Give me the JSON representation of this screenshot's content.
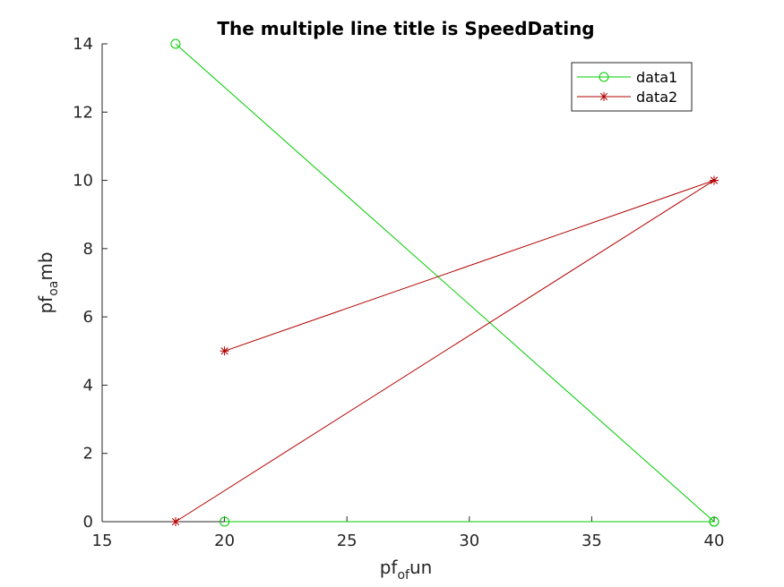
{
  "chart_data": {
    "type": "line",
    "title": "The multiple line title is SpeedDating",
    "xlabel": {
      "main": "pf",
      "sub": "of",
      "suffix": "un"
    },
    "ylabel": {
      "main": "pf",
      "sub": "oa",
      "suffix": "mb"
    },
    "xlim": [
      15,
      40
    ],
    "ylim": [
      0,
      14
    ],
    "xticks": [
      15,
      20,
      25,
      30,
      35,
      40
    ],
    "yticks": [
      0,
      2,
      4,
      6,
      8,
      10,
      12,
      14
    ],
    "xtick_labels": [
      "15",
      "20",
      "25",
      "30",
      "35",
      "40"
    ],
    "ytick_labels": [
      "0",
      "2",
      "4",
      "6",
      "8",
      "10",
      "12",
      "14"
    ],
    "grid": false,
    "legend_position": "top-right",
    "series": [
      {
        "name": "data1",
        "color": "#00cc00",
        "marker": "circle",
        "x": [
          18,
          40,
          20,
          40
        ],
        "y": [
          14,
          0,
          0,
          0
        ]
      },
      {
        "name": "data2",
        "color": "#b20000",
        "marker": "asterisk",
        "x": [
          20,
          40,
          18,
          40
        ],
        "y": [
          5,
          10,
          0,
          10
        ]
      }
    ]
  }
}
